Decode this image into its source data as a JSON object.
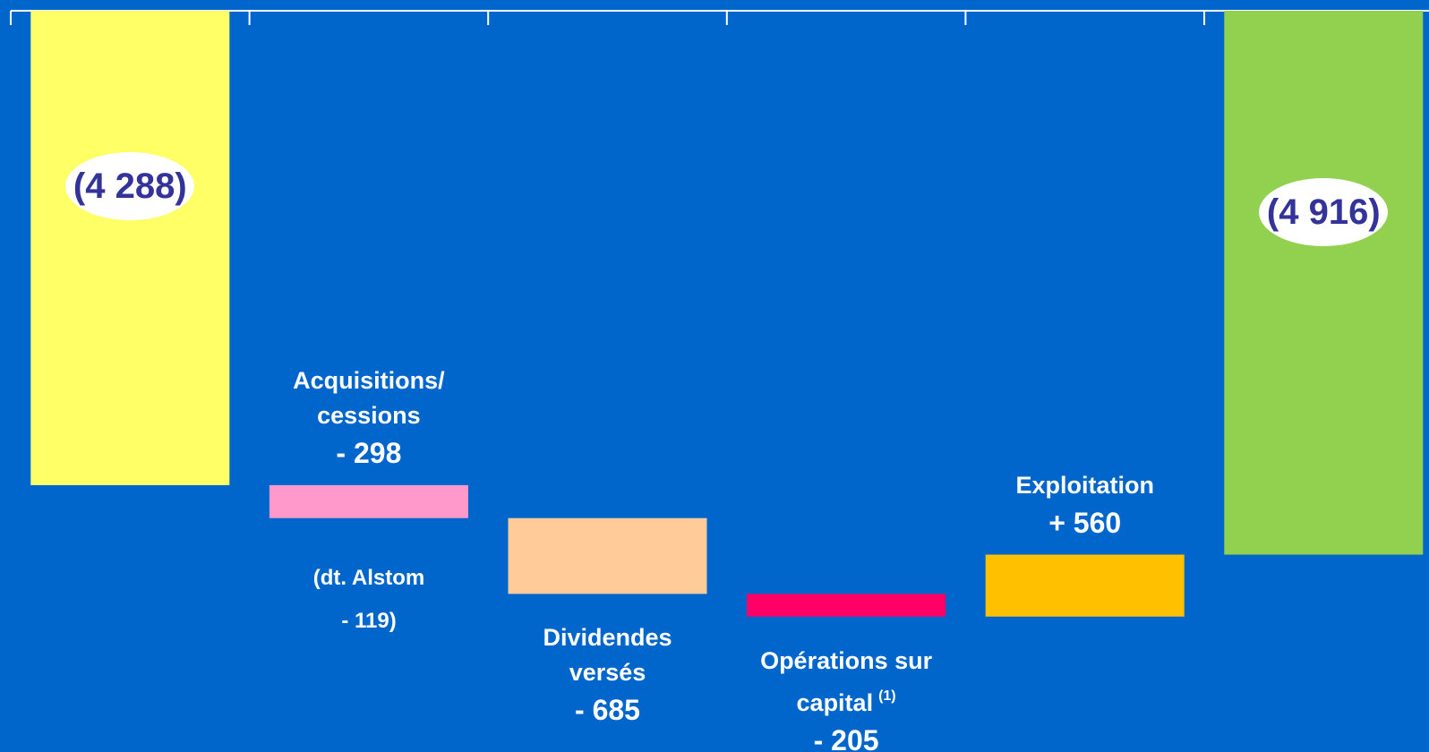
{
  "chart_data": {
    "type": "waterfall",
    "categories": [
      null,
      "Acquisitions/\ncessions",
      "Dividendes\nversés",
      "Opérations sur\ncapital",
      "Exploitation",
      null
    ],
    "category_superscripts": [
      null,
      null,
      null,
      "(1)",
      null,
      null
    ],
    "values": [
      -4288,
      -298,
      -685,
      -205,
      560,
      -4916
    ],
    "value_labels": [
      "(4 288)",
      "- 298",
      "- 685",
      "- 205",
      "+ 560",
      "(4 916)"
    ],
    "measure": [
      "absolute",
      "relative",
      "relative",
      "relative",
      "relative",
      "total"
    ],
    "label_positions": [
      "inside",
      "above",
      "below",
      "below",
      "above",
      "inside"
    ],
    "colors": [
      "#ffff66",
      "#ff99cc",
      "#ffcc99",
      "#ff0066",
      "#ffc000",
      "#92d050"
    ],
    "ylim": [
      -6700,
      0
    ],
    "annotations": [
      "(dt. Alstom\n- 119)"
    ]
  }
}
